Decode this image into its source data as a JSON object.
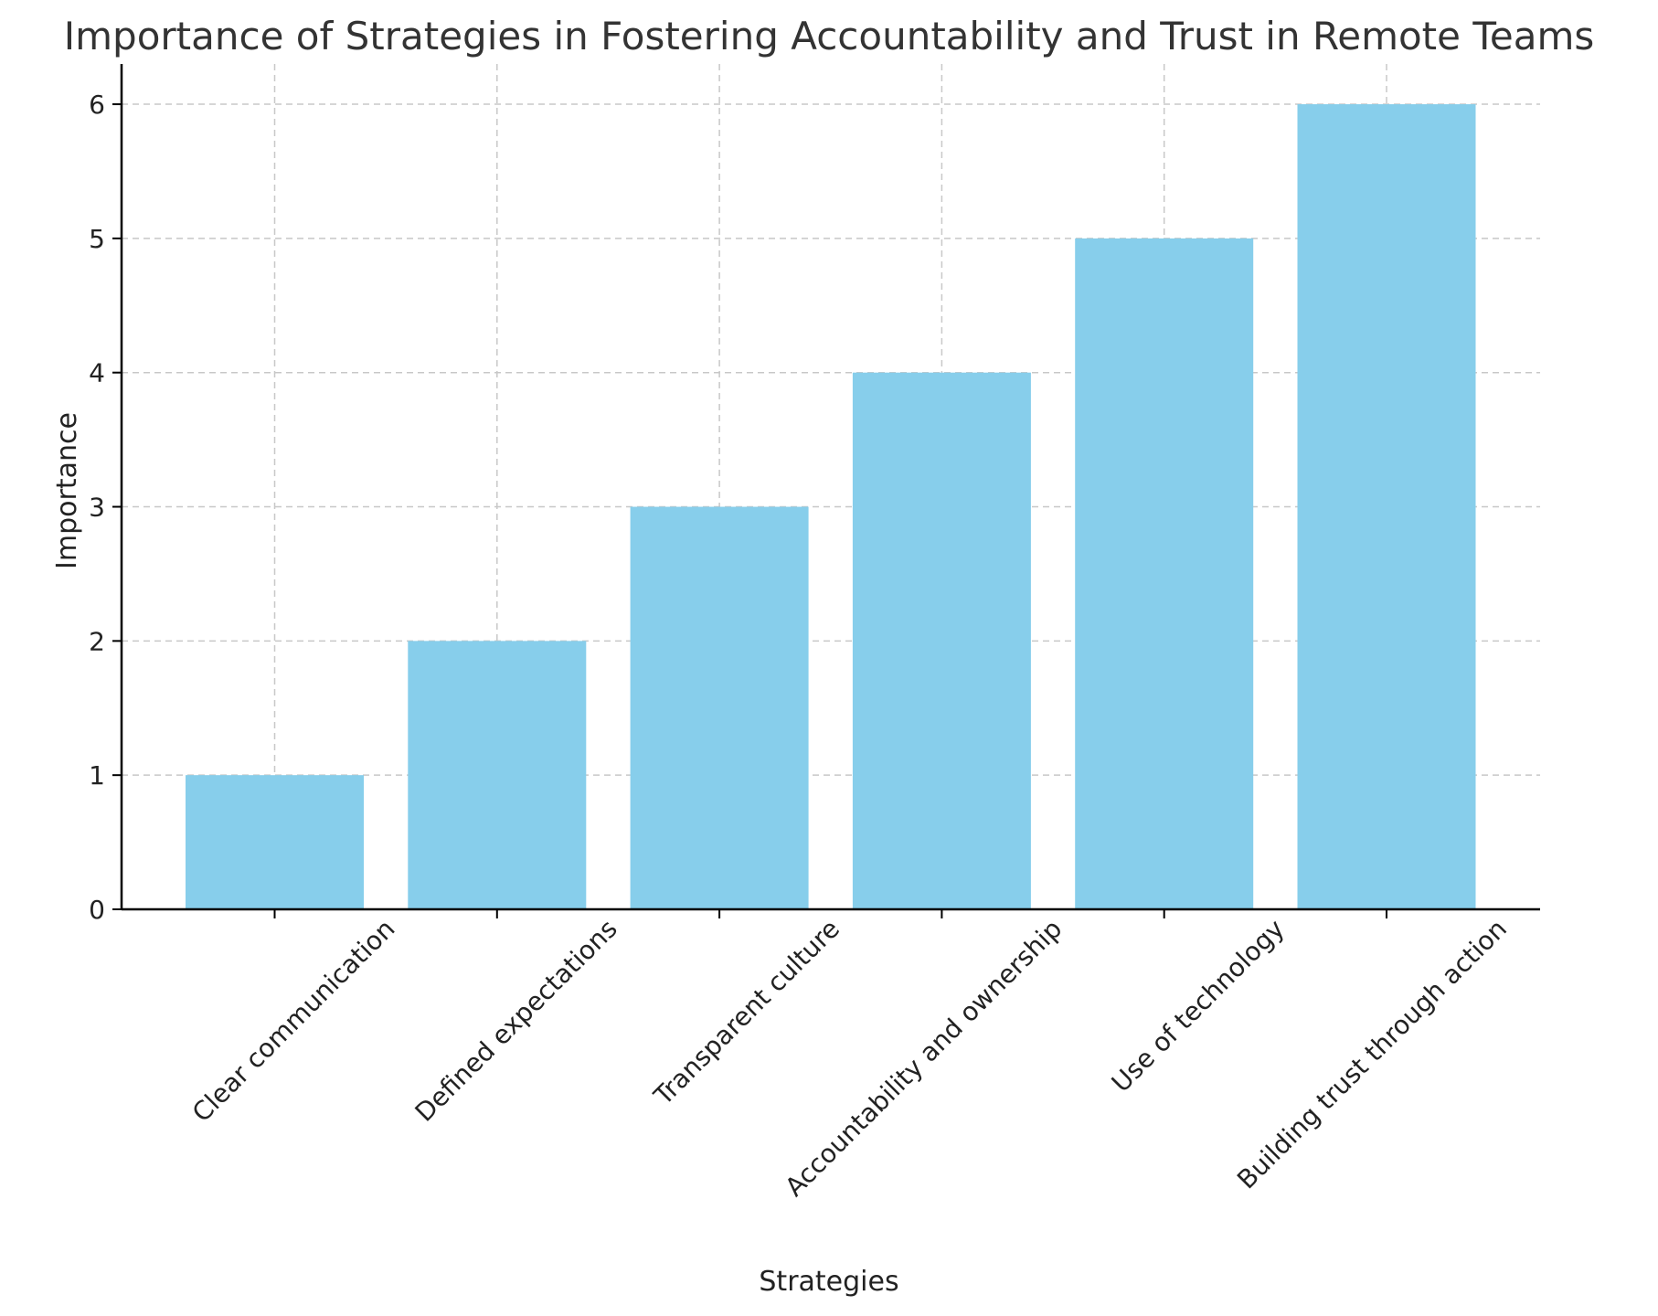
{
  "chart_data": {
    "type": "bar",
    "title": "Importance of Strategies in Fostering Accountability and Trust in Remote Teams",
    "xlabel": "Strategies",
    "ylabel": "Importance",
    "categories": [
      "Clear communication",
      "Defined expectations",
      "Transparent culture",
      "Accountability and ownership",
      "Use of technology",
      "Building trust through action"
    ],
    "values": [
      1,
      2,
      3,
      4,
      5,
      6
    ],
    "ylim": [
      0,
      6.3
    ],
    "yticks": [
      0,
      1,
      2,
      3,
      4,
      5,
      6
    ],
    "grid": true,
    "legend": "none",
    "bar_color": "#87ceeb"
  }
}
